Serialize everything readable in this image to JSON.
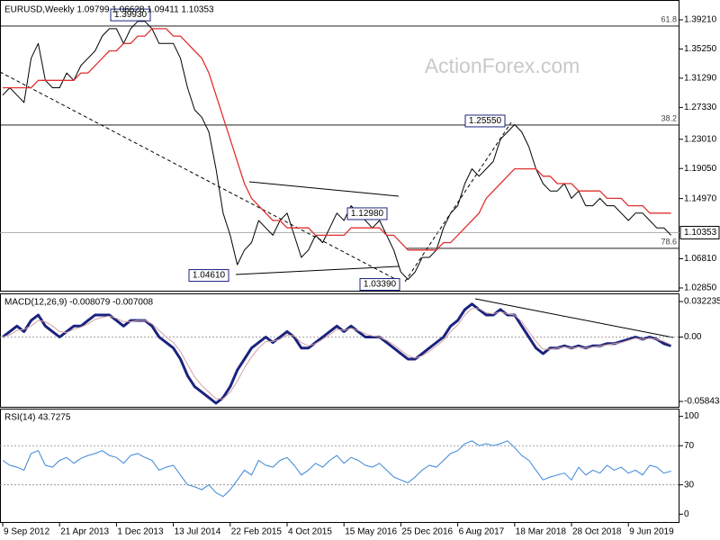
{
  "chart_data": [
    {
      "type": "line",
      "title": "EURUSD,Weekly  1.09799 1.06628 1.09411 1.10353",
      "watermark": "ActionForex.com",
      "ylim": [
        1.0248,
        1.4165
      ],
      "yticks": [
        {
          "value": 1.3921,
          "label": "1.39210"
        },
        {
          "value": 1.3525,
          "label": "1.35250"
        },
        {
          "value": 1.3129,
          "label": "1.31290"
        },
        {
          "value": 1.2733,
          "label": "1.27330"
        },
        {
          "value": 1.2301,
          "label": "1.23010"
        },
        {
          "value": 1.1905,
          "label": "1.19050"
        },
        {
          "value": 1.1497,
          "label": "1.14970"
        },
        {
          "value": 1.0681,
          "label": "1.06810"
        },
        {
          "value": 1.0285,
          "label": "1.02850"
        }
      ],
      "last_price": 1.10353,
      "levels": [
        {
          "value": 1.3836,
          "label": "61.8"
        },
        {
          "value": 1.2494,
          "label": "38.2"
        },
        {
          "value": 1.0822,
          "label": "78.6"
        }
      ],
      "annotations": [
        {
          "value": 1.3993,
          "label": "1.39930"
        },
        {
          "value": 1.2555,
          "label": "1.25550"
        },
        {
          "value": 1.1298,
          "label": "1.12980"
        },
        {
          "value": 1.0461,
          "label": "1.04610"
        },
        {
          "value": 1.0339,
          "label": "1.03390"
        }
      ],
      "series": [
        {
          "color": "#000000",
          "values": [
            1.29,
            1.3,
            1.29,
            1.28,
            1.34,
            1.36,
            1.31,
            1.3,
            1.3,
            1.32,
            1.31,
            1.33,
            1.34,
            1.35,
            1.37,
            1.38,
            1.38,
            1.36,
            1.38,
            1.39,
            1.39,
            1.38,
            1.36,
            1.36,
            1.36,
            1.34,
            1.3,
            1.27,
            1.26,
            1.24,
            1.19,
            1.13,
            1.1,
            1.06,
            1.08,
            1.09,
            1.12,
            1.11,
            1.1,
            1.12,
            1.13,
            1.1,
            1.07,
            1.08,
            1.1,
            1.09,
            1.11,
            1.13,
            1.12,
            1.14,
            1.13,
            1.12,
            1.11,
            1.12,
            1.1,
            1.08,
            1.05,
            1.04,
            1.05,
            1.07,
            1.07,
            1.08,
            1.11,
            1.13,
            1.14,
            1.17,
            1.19,
            1.18,
            1.19,
            1.2,
            1.23,
            1.24,
            1.25,
            1.24,
            1.22,
            1.19,
            1.17,
            1.16,
            1.16,
            1.17,
            1.15,
            1.16,
            1.14,
            1.14,
            1.15,
            1.14,
            1.14,
            1.13,
            1.12,
            1.13,
            1.13,
            1.12,
            1.11,
            1.11,
            1.1
          ]
        },
        {
          "color": "#e0312f",
          "values": [
            1.3,
            1.3,
            1.3,
            1.3,
            1.3,
            1.31,
            1.31,
            1.31,
            1.31,
            1.31,
            1.31,
            1.32,
            1.32,
            1.33,
            1.34,
            1.35,
            1.35,
            1.36,
            1.36,
            1.37,
            1.37,
            1.38,
            1.38,
            1.38,
            1.37,
            1.37,
            1.36,
            1.35,
            1.34,
            1.32,
            1.29,
            1.26,
            1.23,
            1.2,
            1.17,
            1.15,
            1.14,
            1.13,
            1.12,
            1.12,
            1.11,
            1.11,
            1.11,
            1.11,
            1.1,
            1.1,
            1.1,
            1.1,
            1.1,
            1.11,
            1.11,
            1.11,
            1.11,
            1.11,
            1.1,
            1.1,
            1.09,
            1.08,
            1.08,
            1.08,
            1.08,
            1.08,
            1.09,
            1.09,
            1.1,
            1.11,
            1.12,
            1.13,
            1.15,
            1.16,
            1.17,
            1.18,
            1.19,
            1.19,
            1.19,
            1.19,
            1.18,
            1.18,
            1.17,
            1.17,
            1.17,
            1.16,
            1.16,
            1.16,
            1.16,
            1.15,
            1.15,
            1.15,
            1.14,
            1.14,
            1.14,
            1.13,
            1.13,
            1.13,
            1.13
          ]
        }
      ]
    },
    {
      "type": "line",
      "title": "MACD(12,26,9) -0.008079 -0.007008",
      "ylim": [
        -0.0633,
        0.0388
      ],
      "yticks": [
        0.032235,
        {
          "value": 0,
          "label": "0.00"
        },
        -0.058434
      ],
      "levels": [
        0
      ],
      "series": [
        {
          "color": "#1a237e",
          "values": [
            0.0,
            0.005,
            0.01,
            0.005,
            0.015,
            0.02,
            0.01,
            0.005,
            0.0,
            0.005,
            0.01,
            0.01,
            0.015,
            0.02,
            0.02,
            0.02,
            0.015,
            0.01,
            0.015,
            0.015,
            0.015,
            0.01,
            0.0,
            -0.005,
            -0.01,
            -0.02,
            -0.035,
            -0.045,
            -0.05,
            -0.055,
            -0.06,
            -0.055,
            -0.045,
            -0.03,
            -0.02,
            -0.01,
            -0.005,
            0.0,
            -0.005,
            0.0,
            0.005,
            0.0,
            -0.01,
            -0.01,
            -0.005,
            0.0,
            0.005,
            0.01,
            0.005,
            0.01,
            0.005,
            0.0,
            0.0,
            0.0,
            -0.005,
            -0.01,
            -0.015,
            -0.02,
            -0.02,
            -0.015,
            -0.01,
            -0.005,
            0.0,
            0.01,
            0.015,
            0.025,
            0.03,
            0.025,
            0.02,
            0.02,
            0.025,
            0.02,
            0.02,
            0.01,
            0.0,
            -0.01,
            -0.015,
            -0.01,
            -0.01,
            -0.008,
            -0.01,
            -0.008,
            -0.01,
            -0.008,
            -0.008,
            -0.006,
            -0.006,
            -0.004,
            -0.002,
            0.0,
            -0.002,
            0.0,
            -0.002,
            -0.006,
            -0.008
          ]
        },
        {
          "color": "#d4a3a3",
          "values": [
            0.0,
            0.002,
            0.006,
            0.007,
            0.01,
            0.015,
            0.014,
            0.01,
            0.005,
            0.004,
            0.007,
            0.009,
            0.012,
            0.016,
            0.018,
            0.019,
            0.017,
            0.014,
            0.014,
            0.015,
            0.015,
            0.012,
            0.006,
            0.0,
            -0.005,
            -0.013,
            -0.025,
            -0.036,
            -0.044,
            -0.05,
            -0.056,
            -0.056,
            -0.05,
            -0.04,
            -0.028,
            -0.018,
            -0.01,
            -0.004,
            -0.004,
            -0.002,
            0.002,
            0.001,
            -0.005,
            -0.008,
            -0.006,
            -0.002,
            0.002,
            0.007,
            0.006,
            0.008,
            0.006,
            0.003,
            0.001,
            0.0,
            -0.003,
            -0.007,
            -0.012,
            -0.017,
            -0.019,
            -0.017,
            -0.013,
            -0.008,
            -0.003,
            0.005,
            0.011,
            0.02,
            0.026,
            0.026,
            0.022,
            0.021,
            0.023,
            0.021,
            0.02,
            0.014,
            0.005,
            -0.004,
            -0.011,
            -0.011,
            -0.01,
            -0.009,
            -0.01,
            -0.009,
            -0.01,
            -0.009,
            -0.008,
            -0.007,
            -0.006,
            -0.005,
            -0.003,
            -0.001,
            -0.002,
            -0.001,
            -0.002,
            -0.004,
            -0.007
          ]
        }
      ]
    },
    {
      "type": "line",
      "title": "RSI(14) 43.7275",
      "ylim": [
        -8,
        107
      ],
      "yticks": [
        100,
        70,
        30,
        0
      ],
      "levels": [
        70,
        30
      ],
      "categories": [
        "9 Sep 2012",
        null,
        null,
        null,
        null,
        null,
        null,
        null,
        "21 Apr 2013",
        null,
        null,
        null,
        null,
        null,
        null,
        null,
        "1 Dec 2013",
        null,
        null,
        null,
        null,
        null,
        null,
        null,
        "13 Jul 2014",
        null,
        null,
        null,
        null,
        null,
        null,
        null,
        "22 Feb 2015",
        null,
        null,
        null,
        null,
        null,
        null,
        null,
        "4 Oct 2015",
        null,
        null,
        null,
        null,
        null,
        null,
        null,
        "15 May 2016",
        null,
        null,
        null,
        null,
        null,
        null,
        null,
        "25 Dec 2016",
        null,
        null,
        null,
        null,
        null,
        null,
        null,
        "6 Aug 2017",
        null,
        null,
        null,
        null,
        null,
        null,
        null,
        "18 Mar 2018",
        null,
        null,
        null,
        null,
        null,
        null,
        null,
        "28 Oct 2018",
        null,
        null,
        null,
        null,
        null,
        null,
        null,
        "9 Jun 2019",
        null,
        null,
        null,
        null,
        null,
        null
      ],
      "series": [
        {
          "color": "#3a86d6",
          "values": [
            55,
            50,
            48,
            45,
            62,
            65,
            50,
            48,
            55,
            58,
            52,
            57,
            60,
            62,
            65,
            60,
            58,
            52,
            60,
            62,
            58,
            55,
            45,
            48,
            50,
            40,
            30,
            28,
            25,
            30,
            22,
            18,
            25,
            35,
            45,
            40,
            55,
            50,
            48,
            55,
            58,
            50,
            40,
            45,
            52,
            48,
            55,
            60,
            52,
            58,
            55,
            50,
            48,
            52,
            45,
            38,
            35,
            32,
            38,
            45,
            50,
            48,
            55,
            62,
            65,
            72,
            75,
            70,
            72,
            70,
            72,
            75,
            68,
            60,
            55,
            45,
            35,
            38,
            40,
            42,
            35,
            48,
            40,
            45,
            42,
            50,
            45,
            48,
            42,
            45,
            40,
            50,
            48,
            42,
            44
          ]
        }
      ]
    }
  ]
}
